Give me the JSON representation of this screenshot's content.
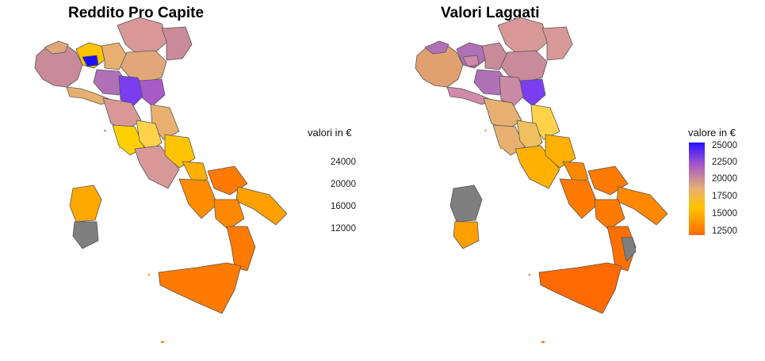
{
  "left_panel": {
    "title": "Reddito Pro Capite",
    "legend": {
      "title": "valori in €",
      "ticks": [
        "24000",
        "20000",
        "16000",
        "12000"
      ]
    }
  },
  "right_panel": {
    "title": "Valori Laggati",
    "legend": {
      "title": "valore in €",
      "ticks": [
        "25000",
        "22500",
        "20000",
        "17500",
        "15000",
        "12500"
      ]
    }
  },
  "colors": {
    "scale_low": "#ff6a00",
    "scale_mid_low": "#ffc000",
    "scale_mid": "#e9b06a",
    "scale_mid_high": "#c98aa6",
    "scale_high": "#1e10ff",
    "missing": "#7f7f7f",
    "border": "#555555"
  }
}
